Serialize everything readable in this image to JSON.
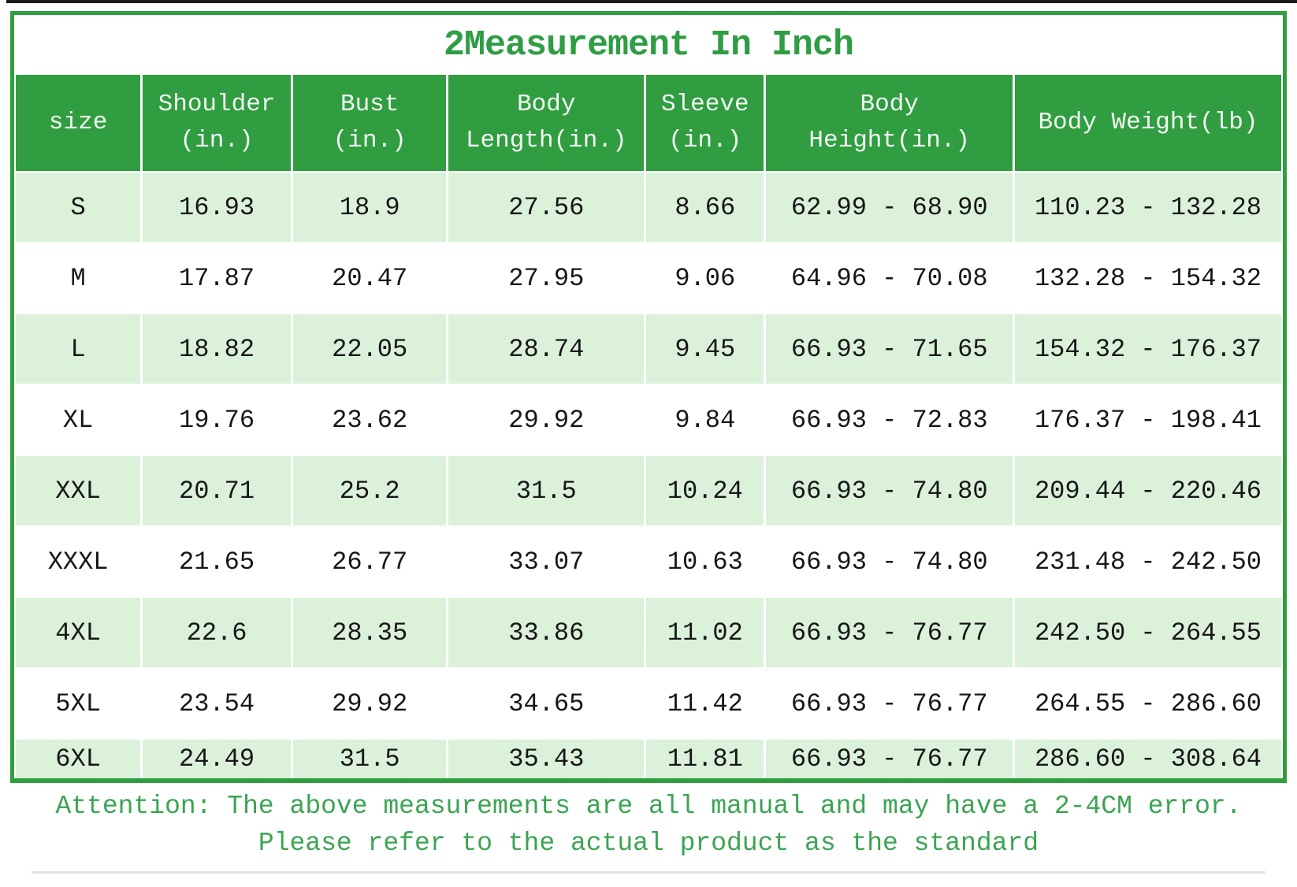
{
  "page": {
    "title": "2Measurement In Inch"
  },
  "chart_data": {
    "type": "table",
    "title": "2Measurement In Inch",
    "columns": [
      {
        "key": "size",
        "label": "size"
      },
      {
        "key": "shoulder",
        "label": "Shoulder\n(in.)"
      },
      {
        "key": "bust",
        "label": "Bust\n(in.)"
      },
      {
        "key": "body_length",
        "label": "Body\nLength(in.)"
      },
      {
        "key": "sleeve",
        "label": "Sleeve\n(in.)"
      },
      {
        "key": "body_height",
        "label": "Body\nHeight(in.)"
      },
      {
        "key": "body_weight",
        "label": "Body Weight(lb)"
      }
    ],
    "rows": [
      {
        "cells": [
          "S",
          "16.93",
          "18.9",
          "27.56",
          "8.66",
          "62.99 - 68.90",
          "110.23 - 132.28"
        ]
      },
      {
        "cells": [
          "M",
          "17.87",
          "20.47",
          "27.95",
          "9.06",
          "64.96 - 70.08",
          "132.28 - 154.32"
        ]
      },
      {
        "cells": [
          "L",
          "18.82",
          "22.05",
          "28.74",
          "9.45",
          "66.93 - 71.65",
          "154.32 - 176.37"
        ]
      },
      {
        "cells": [
          "XL",
          "19.76",
          "23.62",
          "29.92",
          "9.84",
          "66.93 - 72.83",
          "176.37 - 198.41"
        ]
      },
      {
        "cells": [
          "XXL",
          "20.71",
          "25.2",
          "31.5",
          "10.24",
          "66.93 - 74.80",
          "209.44 - 220.46"
        ]
      },
      {
        "cells": [
          "XXXL",
          "21.65",
          "26.77",
          "33.07",
          "10.63",
          "66.93 - 74.80",
          "231.48 - 242.50"
        ]
      },
      {
        "cells": [
          "4XL",
          "22.6",
          "28.35",
          "33.86",
          "11.02",
          "66.93 - 76.77",
          "242.50 - 264.55"
        ]
      },
      {
        "cells": [
          "5XL",
          "23.54",
          "29.92",
          "34.65",
          "11.42",
          "66.93 - 76.77",
          "264.55 - 286.60"
        ]
      },
      {
        "cells": [
          "6XL",
          "24.49",
          "31.5",
          "35.43",
          "11.81",
          "66.93 - 76.77",
          "286.60 - 308.64"
        ]
      }
    ]
  },
  "footer": {
    "line1": "Attention: The above measurements are all manual and may have a 2-4CM error.",
    "line2": "Please refer to the actual product as the standard"
  },
  "colors": {
    "green": "#2f9d40",
    "light_green": "#dbf1da",
    "title_green": "#2f9d44",
    "footer_green": "#3ba452",
    "cell_text": "#161616",
    "header_text": "#f2faf2"
  }
}
